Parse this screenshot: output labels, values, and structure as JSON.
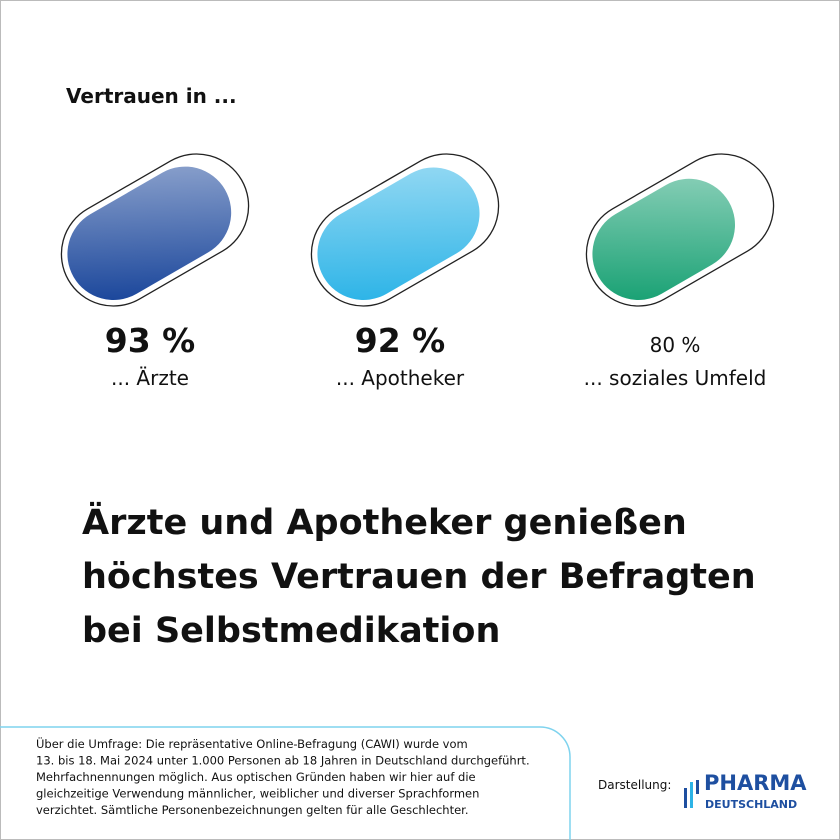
{
  "chart_data": {
    "type": "pill",
    "title": "Vertrauen in ...",
    "categories": [
      "... Ärzte",
      "... Apotheker",
      "... soziales Umfeld"
    ],
    "values": [
      93,
      92,
      80
    ],
    "value_labels": [
      "93 %",
      "92 %",
      "80 %"
    ],
    "colors": [
      "#0f3d96",
      "#22b0e6",
      "#0c9c6c"
    ],
    "ylim": [
      0,
      100
    ]
  },
  "headline": [
    "Ärzte und Apotheker genießen",
    "höchstes Vertrauen der Befragten",
    "bei Selbstmedikation"
  ],
  "footnote": [
    "Über die Umfrage: Die repräsentative Online-Befragung (CAWI) wurde vom",
    "13. bis 18. Mai 2024 unter 1.000 Personen ab 18 Jahren in Deutschland durchgeführt.",
    "Mehrfachnennungen möglich. Aus optischen Gründen haben wir hier auf die",
    "gleichzeitige Verwendung männlicher, weiblicher und diverser Sprachformen",
    "verzichtet. Sämtliche Personenbezeichnungen gelten für alle Geschlechter."
  ],
  "credit": "Darstellung:",
  "logo": {
    "line1": "PHARMA",
    "line2": "DEUTSCHLAND"
  }
}
